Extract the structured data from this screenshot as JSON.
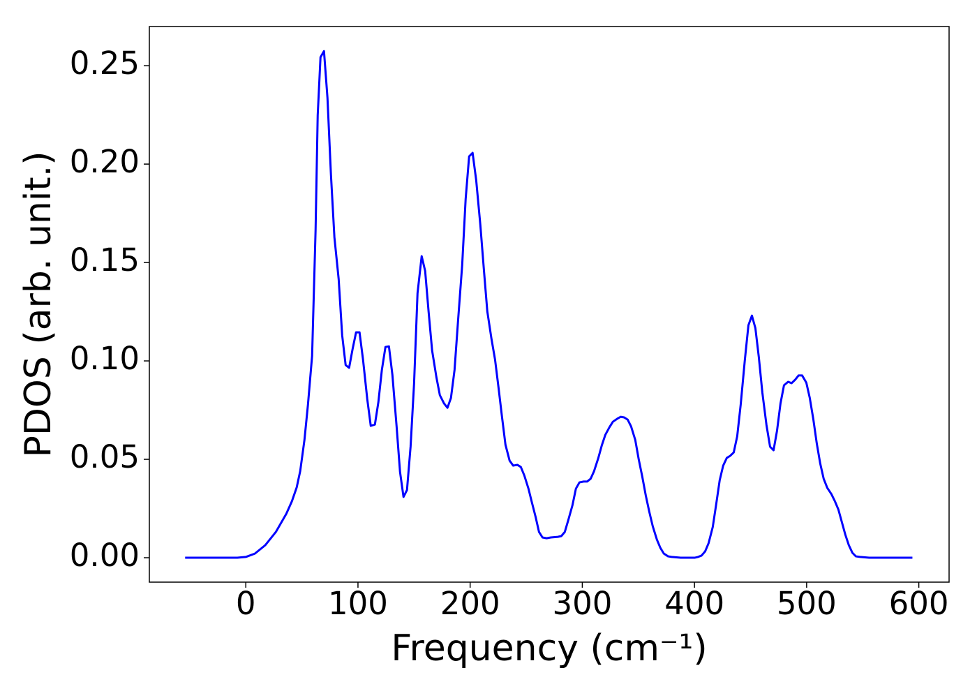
{
  "chart_data": {
    "type": "line",
    "xlabel": "Frequency (cm⁻¹)",
    "ylabel": "PDOS (arb. unit.)",
    "xlim": [
      -86,
      627
    ],
    "ylim": [
      -0.0124,
      0.2699
    ],
    "xticks": [
      0,
      100,
      200,
      300,
      400,
      500,
      600
    ],
    "yticks": [
      {
        "value": 0,
        "label": "0.00"
      },
      {
        "value": 0.05,
        "label": "0.05"
      },
      {
        "value": 0.1,
        "label": "0.10"
      },
      {
        "value": 0.15,
        "label": "0.15"
      },
      {
        "value": 0.2,
        "label": "0.20"
      },
      {
        "value": 0.25,
        "label": "0.25"
      }
    ],
    "grid": false,
    "series": [
      {
        "color": "#0000ff",
        "x": [
          -54.1,
          -7.5,
          0,
          8.1,
          17.4,
          26.8,
          36.1,
          41.1,
          45.4,
          48.5,
          52.3,
          55.4,
          59.1,
          62.2,
          64.1,
          66.6,
          69.7,
          72.8,
          75.9,
          79.0,
          82.8,
          85.9,
          89.0,
          92.1,
          95.2,
          98.3,
          101.4,
          104.5,
          108.3,
          111.4,
          115.1,
          118.2,
          121.3,
          124.5,
          127.6,
          130.7,
          134.4,
          137.5,
          140.6,
          143.7,
          146.9,
          150.0,
          153.1,
          156.8,
          159.9,
          163.0,
          166.1,
          169.9,
          173.0,
          176.7,
          179.8,
          182.9,
          186.1,
          189.2,
          192.9,
          196.0,
          199.1,
          202.2,
          205.4,
          209.1,
          212.2,
          215.3,
          219.0,
          222.2,
          225.3,
          228.4,
          231.5,
          235.2,
          238.4,
          242.1,
          245.2,
          248.3,
          252.0,
          255.1,
          258.3,
          261.4,
          264.5,
          268.2,
          271.9,
          278.2,
          281.3,
          284.4,
          287.5,
          291.2,
          294.3,
          297.5,
          301.2,
          304.3,
          307.4,
          310.5,
          314.3,
          317.4,
          320.5,
          324.2,
          327.3,
          331.1,
          334.2,
          337.3,
          340.4,
          343.5,
          347.2,
          350.3,
          353.5,
          356.6,
          359.7,
          362.8,
          366.5,
          369.6,
          372.7,
          376.5,
          379.6,
          387.7,
          400.1,
          403.2,
          406.3,
          409.5,
          412.6,
          416.3,
          419.4,
          422.5,
          425.6,
          428.8,
          431.9,
          435.0,
          438.1,
          441.2,
          444.9,
          448.1,
          451.2,
          454.3,
          457.4,
          460.5,
          464.2,
          467.4,
          470.5,
          473.6,
          476.7,
          479.8,
          483.5,
          486.6,
          489.7,
          492.8,
          496.0,
          499.7,
          502.8,
          505.9,
          509.0,
          512.1,
          515.2,
          518.4,
          522.1,
          525.2,
          528.3,
          531.4,
          534.5,
          537.6,
          540.8,
          543.9,
          547.6,
          555.7,
          594.3
        ],
        "values": [
          0,
          0,
          0.0004,
          0.0021,
          0.0064,
          0.0131,
          0.0223,
          0.0287,
          0.0358,
          0.044,
          0.0599,
          0.0777,
          0.1025,
          0.1663,
          0.2248,
          0.2543,
          0.2574,
          0.2337,
          0.1947,
          0.1628,
          0.1415,
          0.1131,
          0.0979,
          0.0965,
          0.106,
          0.1145,
          0.1145,
          0.1007,
          0.0805,
          0.067,
          0.0677,
          0.0791,
          0.0954,
          0.1071,
          0.1074,
          0.0929,
          0.067,
          0.0436,
          0.0309,
          0.0344,
          0.0564,
          0.0883,
          0.1344,
          0.1532,
          0.1457,
          0.1248,
          0.1053,
          0.0918,
          0.0826,
          0.0784,
          0.0762,
          0.0812,
          0.0954,
          0.1202,
          0.1486,
          0.1823,
          0.2039,
          0.2057,
          0.1918,
          0.1691,
          0.1468,
          0.1252,
          0.1113,
          0.1007,
          0.0865,
          0.0716,
          0.0574,
          0.0493,
          0.0468,
          0.0472,
          0.0461,
          0.0418,
          0.0351,
          0.028,
          0.0209,
          0.0131,
          0.0103,
          0.0099,
          0.0103,
          0.0106,
          0.011,
          0.0131,
          0.0191,
          0.0266,
          0.0351,
          0.0383,
          0.0387,
          0.0387,
          0.0401,
          0.044,
          0.0507,
          0.0571,
          0.0624,
          0.0663,
          0.0691,
          0.0706,
          0.0716,
          0.0713,
          0.0702,
          0.0667,
          0.0599,
          0.05,
          0.0411,
          0.0316,
          0.0234,
          0.016,
          0.0092,
          0.005,
          0.0021,
          0.0007,
          0.0004,
          0,
          0,
          0.0004,
          0.0011,
          0.0032,
          0.0074,
          0.0156,
          0.0273,
          0.0394,
          0.0468,
          0.0507,
          0.0518,
          0.0535,
          0.0617,
          0.0777,
          0.1004,
          0.1181,
          0.123,
          0.1167,
          0.1018,
          0.084,
          0.0674,
          0.0564,
          0.0546,
          0.0645,
          0.0784,
          0.0876,
          0.0894,
          0.0887,
          0.0904,
          0.0926,
          0.0926,
          0.089,
          0.0812,
          0.0706,
          0.0582,
          0.0479,
          0.0401,
          0.0355,
          0.0323,
          0.0287,
          0.0245,
          0.0181,
          0.0117,
          0.0064,
          0.0025,
          0.0007,
          0.0004,
          0,
          0
        ]
      }
    ]
  }
}
